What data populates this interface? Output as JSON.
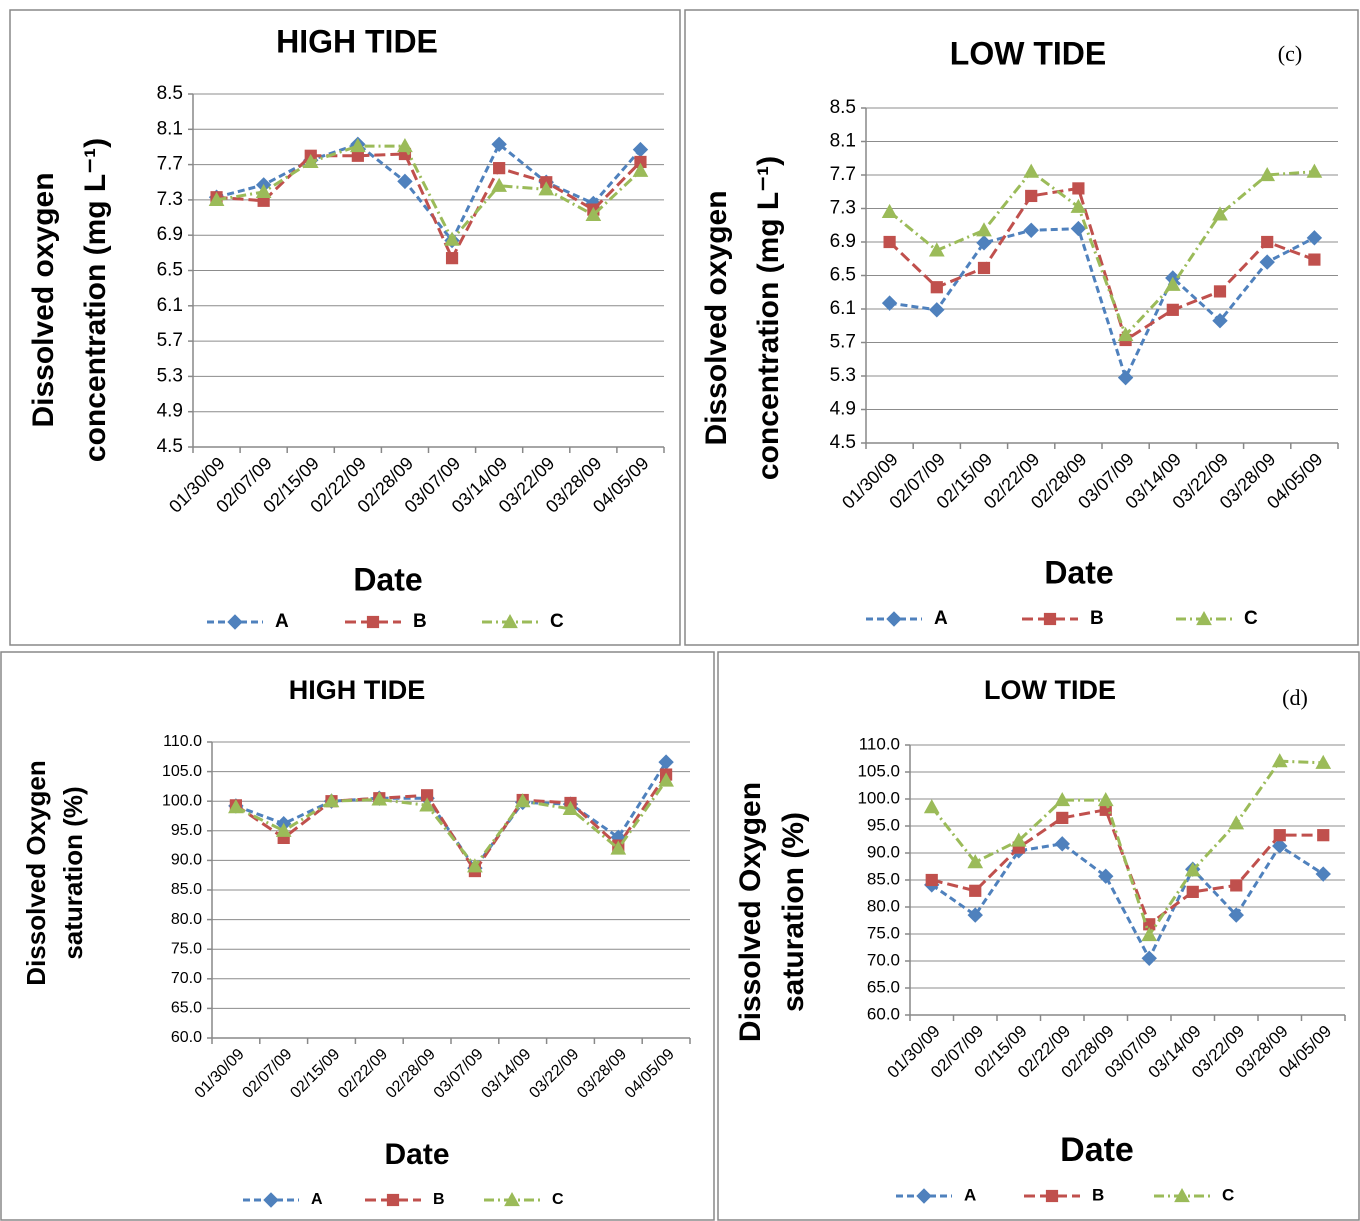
{
  "chart_data": [
    {
      "type": "line",
      "title": "HIGH TIDE",
      "ylabel": [
        "Dissolved oxygen",
        "concentration (mg L⁻¹)"
      ],
      "xlabel": "Date",
      "categories": [
        "01/30/09",
        "02/07/09",
        "02/15/09",
        "02/22/09",
        "02/28/09",
        "03/07/09",
        "03/14/09",
        "03/22/09",
        "03/28/09",
        "04/05/09"
      ],
      "ylim": [
        4.5,
        8.5
      ],
      "yticks": [
        4.5,
        4.9,
        5.3,
        5.7,
        6.1,
        6.5,
        6.9,
        7.3,
        7.7,
        8.1,
        8.5
      ],
      "grid": true,
      "series": [
        {
          "name": "A",
          "color": "#4f81bd",
          "marker": "diamond",
          "values": [
            7.33,
            7.47,
            7.75,
            7.93,
            7.51,
            6.84,
            7.93,
            7.5,
            7.26,
            7.87
          ]
        },
        {
          "name": "B",
          "color": "#c0504d",
          "marker": "square",
          "values": [
            7.33,
            7.29,
            7.8,
            7.8,
            7.82,
            6.64,
            7.66,
            7.5,
            7.19,
            7.73
          ]
        },
        {
          "name": "C",
          "color": "#9bbb59",
          "marker": "triangle",
          "values": [
            7.3,
            7.39,
            7.73,
            7.91,
            7.91,
            6.85,
            7.46,
            7.42,
            7.13,
            7.63
          ]
        }
      ]
    },
    {
      "type": "line",
      "title": "LOW TIDE",
      "annotation": "(c)",
      "ylabel": [
        "Dissolved oxygen",
        "concentration (mg L⁻¹)"
      ],
      "xlabel": "Date",
      "categories": [
        "01/30/09",
        "02/07/09",
        "02/15/09",
        "02/22/09",
        "02/28/09",
        "03/07/09",
        "03/14/09",
        "03/22/09",
        "03/28/09",
        "04/05/09"
      ],
      "ylim": [
        4.5,
        8.5
      ],
      "yticks": [
        4.5,
        4.9,
        5.3,
        5.7,
        6.1,
        6.5,
        6.9,
        7.3,
        7.7,
        8.1,
        8.5
      ],
      "grid": true,
      "series": [
        {
          "name": "A",
          "color": "#4f81bd",
          "marker": "diamond",
          "values": [
            6.17,
            6.09,
            6.89,
            7.04,
            7.06,
            5.28,
            6.47,
            5.96,
            6.66,
            6.95
          ]
        },
        {
          "name": "B",
          "color": "#c0504d",
          "marker": "square",
          "values": [
            6.9,
            6.36,
            6.59,
            7.45,
            7.54,
            5.73,
            6.09,
            6.31,
            6.9,
            6.69
          ]
        },
        {
          "name": "C",
          "color": "#9bbb59",
          "marker": "triangle",
          "values": [
            7.26,
            6.8,
            7.04,
            7.74,
            7.32,
            5.79,
            6.39,
            7.23,
            7.7,
            7.74
          ]
        }
      ]
    },
    {
      "type": "line",
      "title": "HIGH TIDE",
      "ylabel": [
        "Dissolved Oxygen",
        "saturation (%)"
      ],
      "xlabel": "Date",
      "categories": [
        "01/30/09",
        "02/07/09",
        "02/15/09",
        "02/22/09",
        "02/28/09",
        "03/07/09",
        "03/14/09",
        "03/22/09",
        "03/28/09",
        "04/05/09"
      ],
      "ylim": [
        60,
        110
      ],
      "yticks": [
        {
          "value": 60,
          "label": "60.0"
        },
        {
          "value": 65,
          "label": "65.0"
        },
        {
          "value": 70,
          "label": "70.0"
        },
        {
          "value": 75,
          "label": "75.0"
        },
        {
          "value": 80,
          "label": "80.0"
        },
        {
          "value": 85,
          "label": "85.0"
        },
        {
          "value": 90,
          "label": "90.0"
        },
        {
          "value": 95,
          "label": "95.0"
        },
        {
          "value": 100,
          "label": "100.0"
        },
        {
          "value": 105,
          "label": "105.0"
        },
        {
          "value": 110,
          "label": "110.0"
        }
      ],
      "grid": true,
      "series": [
        {
          "name": "A",
          "color": "#4f81bd",
          "marker": "diamond",
          "values": [
            99.2,
            96.2,
            100.0,
            100.5,
            100.5,
            88.7,
            99.8,
            99.5,
            93.9,
            106.6
          ]
        },
        {
          "name": "B",
          "color": "#c0504d",
          "marker": "square",
          "values": [
            99.3,
            93.8,
            100.0,
            100.5,
            101.0,
            88.2,
            100.2,
            99.7,
            92.5,
            104.5
          ]
        },
        {
          "name": "C",
          "color": "#9bbb59",
          "marker": "triangle",
          "values": [
            99.0,
            95.0,
            100.0,
            100.3,
            99.3,
            89.0,
            100.0,
            98.7,
            92.0,
            103.5
          ]
        }
      ]
    },
    {
      "type": "line",
      "title": "LOW TIDE",
      "annotation": "(d)",
      "ylabel": [
        "Dissolved Oxygen",
        "saturation (%)"
      ],
      "xlabel": "Date",
      "categories": [
        "01/30/09",
        "02/07/09",
        "02/15/09",
        "02/22/09",
        "02/28/09",
        "03/07/09",
        "03/14/09",
        "03/22/09",
        "03/28/09",
        "04/05/09"
      ],
      "ylim": [
        60,
        110
      ],
      "yticks": [
        {
          "value": 60,
          "label": "60.0"
        },
        {
          "value": 65,
          "label": "65.0"
        },
        {
          "value": 70,
          "label": "70.0"
        },
        {
          "value": 75,
          "label": "75.0"
        },
        {
          "value": 80,
          "label": "80.0"
        },
        {
          "value": 85,
          "label": "85.0"
        },
        {
          "value": 90,
          "label": "90.0"
        },
        {
          "value": 95,
          "label": "95.0"
        },
        {
          "value": 100,
          "label": "100.0"
        },
        {
          "value": 105,
          "label": "105.0"
        },
        {
          "value": 110,
          "label": "110.0"
        }
      ],
      "grid": true,
      "series": [
        {
          "name": "A",
          "color": "#4f81bd",
          "marker": "diamond",
          "values": [
            84.1,
            78.5,
            90.4,
            91.7,
            85.7,
            70.5,
            87.0,
            78.5,
            91.3,
            86.1
          ]
        },
        {
          "name": "B",
          "color": "#c0504d",
          "marker": "square",
          "values": [
            85.0,
            83.0,
            91.0,
            96.5,
            98.0,
            76.8,
            82.8,
            84.0,
            93.3,
            93.3
          ]
        },
        {
          "name": "C",
          "color": "#9bbb59",
          "marker": "triangle",
          "values": [
            98.5,
            88.3,
            92.3,
            99.8,
            99.8,
            74.8,
            86.8,
            95.5,
            107.0,
            106.7
          ]
        }
      ]
    }
  ]
}
